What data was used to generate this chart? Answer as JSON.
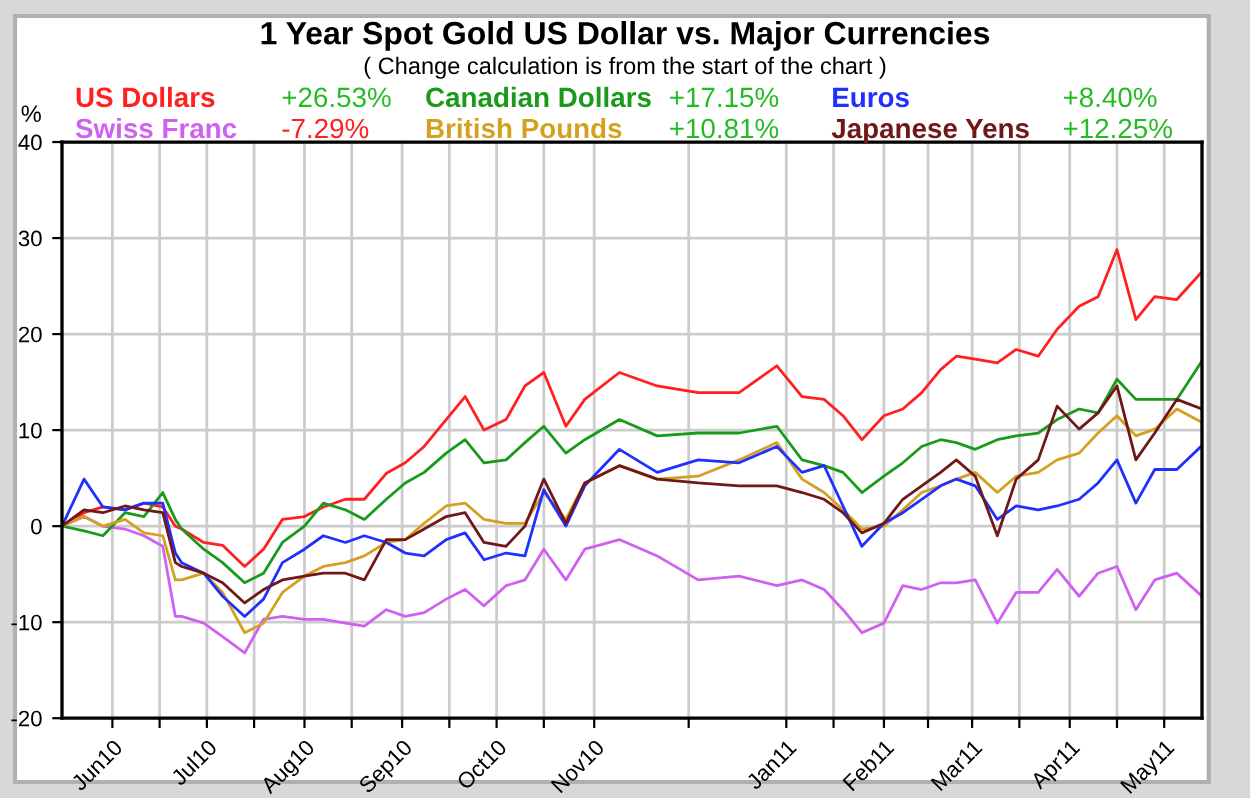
{
  "chart_data": {
    "type": "line",
    "title": "1 Year Spot Gold US Dollar vs. Major Currencies",
    "subtitle": "( Change calculation is from the start of the chart )",
    "ylabel": "%",
    "x": [
      "2010-05-16",
      "2010-05-23",
      "2010-05-29",
      "2010-06-05",
      "2010-06-11",
      "2010-06-17",
      "2010-06-21",
      "2010-06-23",
      "2010-06-30",
      "2010-07-06",
      "2010-07-13",
      "2010-07-19",
      "2010-07-25",
      "2010-08-01",
      "2010-08-07",
      "2010-08-14",
      "2010-08-20",
      "2010-08-27",
      "2010-09-02",
      "2010-09-08",
      "2010-09-15",
      "2010-09-21",
      "2010-09-27",
      "2010-10-04",
      "2010-10-10",
      "2010-10-16",
      "2010-10-23",
      "2010-10-29",
      "2010-11-09",
      "2010-11-21",
      "2010-12-04",
      "2010-12-17",
      "2010-12-29",
      "2011-01-06",
      "2011-01-13",
      "2011-01-19",
      "2011-01-25",
      "2011-02-01",
      "2011-02-07",
      "2011-02-13",
      "2011-02-19",
      "2011-02-24",
      "2011-03-02",
      "2011-03-09",
      "2011-03-15",
      "2011-03-22",
      "2011-03-28",
      "2011-04-04",
      "2011-04-10",
      "2011-04-16",
      "2011-04-22",
      "2011-04-28",
      "2011-05-05",
      "2011-05-13"
    ],
    "series": [
      {
        "name": "US Dollars",
        "color": "#ff2020",
        "values": [
          0,
          1.4,
          2,
          1.7,
          2.4,
          2,
          0,
          -0.3,
          -1.7,
          -2,
          -4.2,
          -2.4,
          0.7,
          1,
          2,
          2.8,
          2.8,
          5.5,
          6.6,
          8.3,
          11.1,
          13.5,
          10,
          11.1,
          14.6,
          16,
          10.4,
          13.2,
          16,
          14.6,
          13.9,
          13.9,
          16.7,
          13.5,
          13.2,
          11.5,
          9,
          11.5,
          12.2,
          13.9,
          16.3,
          17.7,
          17.4,
          17,
          18.4,
          17.7,
          20.5,
          22.9,
          23.9,
          28.8,
          21.5,
          23.9,
          23.6,
          26.5
        ]
      },
      {
        "name": "Swiss Franc",
        "color": "#d060f0",
        "values": [
          0,
          1,
          0,
          -0.3,
          -1,
          -2.1,
          -9.4,
          -9.4,
          -10.1,
          -11.5,
          -13.2,
          -9.7,
          -9.4,
          -9.7,
          -9.7,
          -10.1,
          -10.4,
          -8.7,
          -9.4,
          -9,
          -7.6,
          -6.6,
          -8.3,
          -6.2,
          -5.6,
          -2.4,
          -5.6,
          -2.4,
          -1.4,
          -3.1,
          -5.6,
          -5.2,
          -6.2,
          -5.6,
          -6.6,
          -8.7,
          -11.1,
          -10.1,
          -6.2,
          -6.6,
          -5.9,
          -5.9,
          -5.6,
          -10.1,
          -6.9,
          -6.9,
          -4.5,
          -7.3,
          -4.9,
          -4.2,
          -8.7,
          -5.6,
          -4.9,
          -7.3
        ]
      },
      {
        "name": "Canadian Dollars",
        "color": "#1a9a1a",
        "values": [
          0,
          -0.5,
          -1,
          1.4,
          1,
          3.5,
          0.7,
          -0.3,
          -2.4,
          -3.8,
          -5.9,
          -4.9,
          -1.7,
          0,
          2.4,
          1.7,
          0.7,
          2.8,
          4.5,
          5.6,
          7.6,
          9,
          6.6,
          6.9,
          8.7,
          10.4,
          7.6,
          9,
          11.1,
          9.4,
          9.7,
          9.7,
          10.4,
          6.9,
          6.3,
          5.6,
          3.5,
          5.2,
          6.6,
          8.3,
          9,
          8.7,
          8,
          9,
          9.4,
          9.7,
          11.1,
          12.2,
          11.8,
          15.3,
          13.2,
          13.2,
          13.2,
          17.2
        ]
      },
      {
        "name": "British Pounds",
        "color": "#d4a020",
        "values": [
          0,
          1,
          0,
          0.7,
          -0.7,
          -1,
          -5.6,
          -5.6,
          -4.9,
          -6.9,
          -11.1,
          -10.1,
          -6.9,
          -5.2,
          -4.2,
          -3.8,
          -3.1,
          -1.7,
          -1.4,
          0.3,
          2.1,
          2.4,
          0.7,
          0.3,
          0.3,
          3.5,
          0.7,
          4.5,
          6.3,
          4.9,
          5.2,
          6.9,
          8.7,
          4.9,
          3.5,
          1.7,
          -0.3,
          0,
          1.7,
          3.5,
          4.2,
          4.9,
          5.6,
          3.5,
          5.2,
          5.6,
          6.9,
          7.6,
          9.7,
          11.5,
          9.4,
          10.1,
          12.2,
          10.8
        ]
      },
      {
        "name": "Euros",
        "color": "#2030ff",
        "values": [
          0,
          4.9,
          2,
          1.7,
          2.4,
          2.4,
          -2.8,
          -3.8,
          -4.9,
          -7.3,
          -9.4,
          -7.6,
          -3.8,
          -2.4,
          -1,
          -1.7,
          -1,
          -1.7,
          -2.8,
          -3.1,
          -1.4,
          -0.7,
          -3.5,
          -2.8,
          -3.1,
          3.8,
          0,
          4.2,
          8,
          5.6,
          6.9,
          6.6,
          8.3,
          5.6,
          6.3,
          2.1,
          -2.1,
          0.3,
          1.4,
          2.8,
          4.2,
          4.9,
          4.2,
          0.7,
          2.1,
          1.7,
          2.1,
          2.8,
          4.5,
          6.9,
          2.4,
          5.9,
          5.9,
          8.4
        ]
      },
      {
        "name": "Japanese Yens",
        "color": "#701818",
        "values": [
          0,
          1.7,
          1.4,
          2.1,
          1.7,
          1.4,
          -3.8,
          -4.2,
          -4.9,
          -5.9,
          -8,
          -6.6,
          -5.6,
          -5.2,
          -4.9,
          -4.9,
          -5.6,
          -1.4,
          -1.4,
          -0.3,
          1,
          1.4,
          -1.7,
          -2.1,
          0,
          4.9,
          0.3,
          4.5,
          6.3,
          4.9,
          4.5,
          4.2,
          4.2,
          3.5,
          2.8,
          1.4,
          -0.7,
          0.3,
          2.8,
          4.2,
          5.6,
          6.9,
          5.2,
          -1,
          4.9,
          6.9,
          12.5,
          10.1,
          11.8,
          14.6,
          6.9,
          9.7,
          13.2,
          12.2
        ]
      }
    ],
    "annotations": [
      "+26.53%",
      "-7.29%",
      "+17.15%",
      "+10.81%",
      "+8.40%",
      "+12.25%"
    ],
    "xlim": [
      "2010-05-16",
      "2011-05-13"
    ],
    "xticks": [
      {
        "value": "2010-06-01",
        "label": "Jun10"
      },
      {
        "value": "2010-06-16",
        "label": null
      },
      {
        "value": "2010-07-01",
        "label": "Jul10"
      },
      {
        "value": "2010-07-16",
        "label": null
      },
      {
        "value": "2010-08-01",
        "label": "Aug10"
      },
      {
        "value": "2010-08-16",
        "label": null
      },
      {
        "value": "2010-09-01",
        "label": "Sep10"
      },
      {
        "value": "2010-09-16",
        "label": null
      },
      {
        "value": "2010-10-01",
        "label": "Oct10"
      },
      {
        "value": "2010-10-16",
        "label": null
      },
      {
        "value": "2010-11-01",
        "label": "Nov10"
      },
      {
        "value": "2010-12-01",
        "label": null
      },
      {
        "value": "2011-01-01",
        "label": "Jan11"
      },
      {
        "value": "2011-01-16",
        "label": null
      },
      {
        "value": "2011-02-01",
        "label": "Feb11"
      },
      {
        "value": "2011-02-15",
        "label": null
      },
      {
        "value": "2011-03-01",
        "label": "Mar11"
      },
      {
        "value": "2011-03-16",
        "label": null
      },
      {
        "value": "2011-04-01",
        "label": "Apr11"
      },
      {
        "value": "2011-04-16",
        "label": null
      },
      {
        "value": "2011-05-01",
        "label": "May11"
      }
    ],
    "ylim": [
      -20,
      40
    ],
    "yticks": [
      -20,
      -10,
      0,
      10,
      20,
      30,
      40
    ],
    "grid": true,
    "legend": "top"
  }
}
